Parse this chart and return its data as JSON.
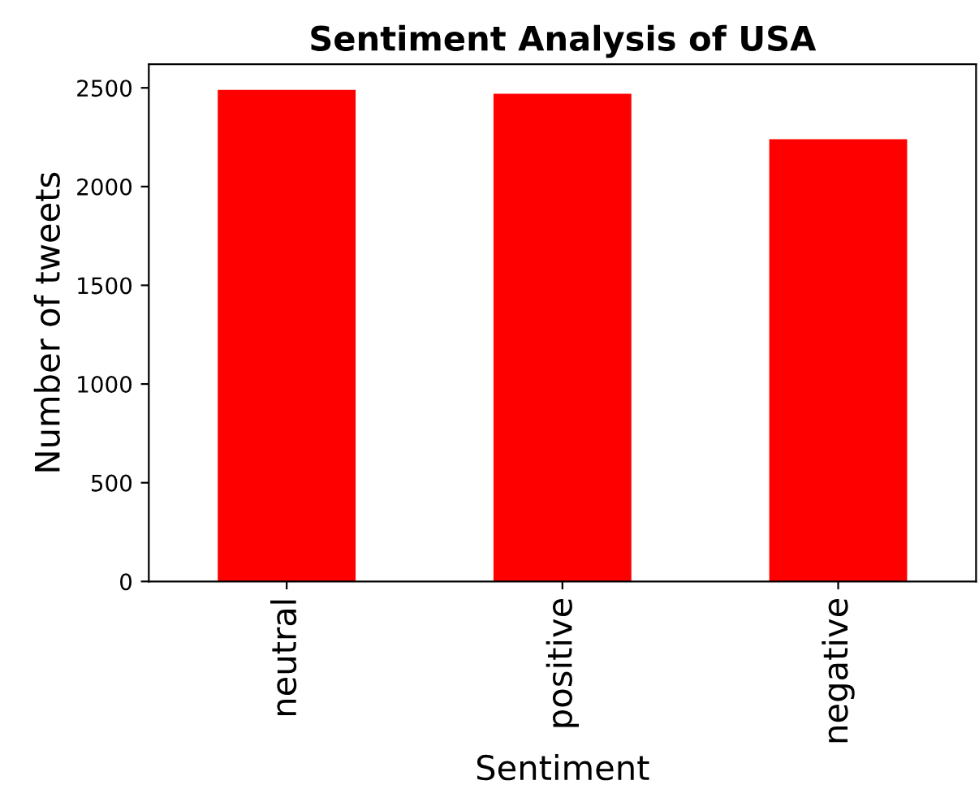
{
  "chart_data": {
    "type": "bar",
    "title": "Sentiment Analysis of USA",
    "xlabel": "Sentiment",
    "ylabel": "Number of tweets",
    "categories": [
      "neutral",
      "positive",
      "negative"
    ],
    "values": [
      2490,
      2470,
      2240
    ],
    "color": "#ff0000",
    "ylim": [
      0,
      2620
    ],
    "yticks": [
      0,
      500,
      1000,
      1500,
      2000,
      2500
    ],
    "grid": false,
    "legend": false
  }
}
